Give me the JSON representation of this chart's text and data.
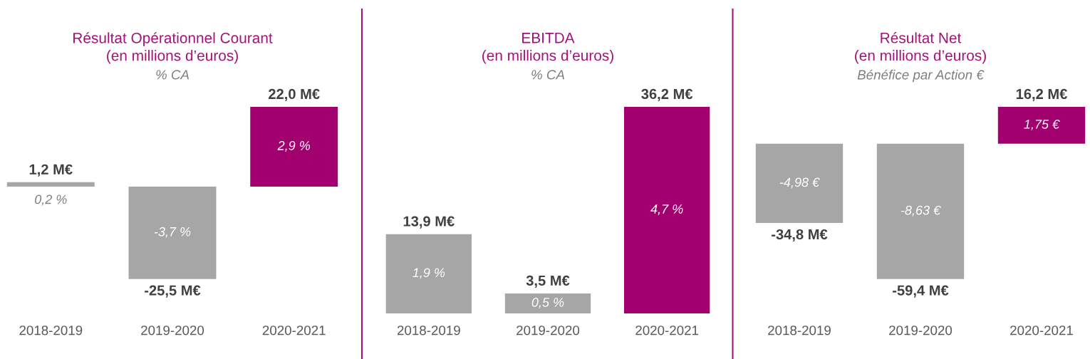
{
  "chart_data": [
    {
      "type": "bar",
      "title": "Résultat Opérationnel Courant\n(en millions d’euros)",
      "subtitle": "% CA",
      "categories": [
        "2018-2019",
        "2019-2020",
        "2020-2021"
      ],
      "values": [
        1.2,
        -25.5,
        22.0
      ],
      "colors": [
        "#a6a6a6",
        "#a6a6a6",
        "#a3006f"
      ],
      "value_labels": [
        "1,2 M€",
        "-25,5 M€",
        "22,0 M€"
      ],
      "annotations": [
        "0,2 %",
        "-3,7 %",
        "2,9 %"
      ],
      "tick_labels": "x"
    },
    {
      "type": "bar",
      "title": "EBITDA\n(en millions d’euros)",
      "subtitle": "% CA",
      "categories": [
        "2018-2019",
        "2019-2020",
        "2020-2021"
      ],
      "values": [
        13.9,
        3.5,
        36.2
      ],
      "colors": [
        "#a6a6a6",
        "#a6a6a6",
        "#a3006f"
      ],
      "value_labels": [
        "13,9 M€",
        "3,5 M€",
        "36,2 M€"
      ],
      "annotations": [
        "1,9 %",
        "0,5 %",
        "4,7 %"
      ],
      "tick_labels": "x"
    },
    {
      "type": "bar",
      "title": "Résultat Net\n(en millions d’euros)",
      "subtitle": "Bénéfice par Action €",
      "categories": [
        "2018-2019",
        "2019-2020",
        "2020-2021"
      ],
      "values": [
        -34.8,
        -59.4,
        16.2
      ],
      "colors": [
        "#a6a6a6",
        "#a6a6a6",
        "#a3006f"
      ],
      "value_labels": [
        "-34,8 M€",
        "-59,4 M€",
        "16,2 M€"
      ],
      "annotations": [
        "-4,98 €",
        "-8,63 €",
        "1,75 €"
      ],
      "tick_labels": "x"
    }
  ]
}
